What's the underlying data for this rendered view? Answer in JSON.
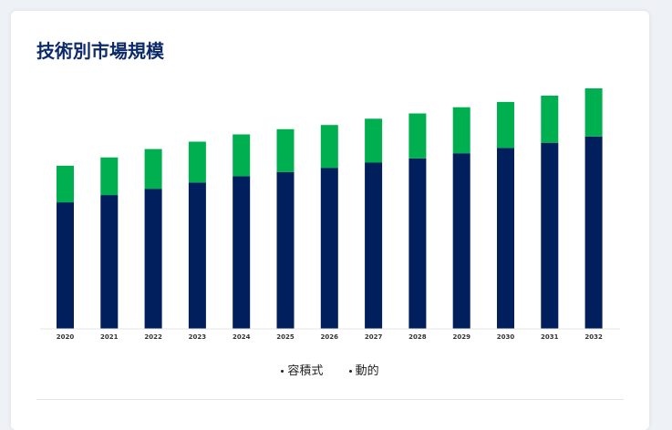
{
  "title": "技術別市場規模",
  "colors": {
    "bottom": "#001f5c",
    "top": "#00b050",
    "title": "#0d2a6b"
  },
  "chart_data": {
    "type": "bar",
    "stacked": true,
    "categories": [
      "2020",
      "2021",
      "2022",
      "2023",
      "2024",
      "2025",
      "2026",
      "2027",
      "2028",
      "2029",
      "2030",
      "2031",
      "2032"
    ],
    "series": [
      {
        "name": "容積式",
        "color": "#001f5c",
        "values": [
          121,
          128,
          134,
          140,
          146,
          150,
          154,
          159,
          163,
          168,
          173,
          178,
          184
        ]
      },
      {
        "name": "動的",
        "color": "#00b050",
        "values": [
          35,
          36,
          38,
          39,
          40,
          41,
          41,
          42,
          43,
          44,
          44,
          45,
          46
        ]
      }
    ],
    "ylim": [
      0,
      230
    ],
    "legend_position": "bottom-center",
    "grid": false,
    "xlabel": "",
    "ylabel": ""
  }
}
